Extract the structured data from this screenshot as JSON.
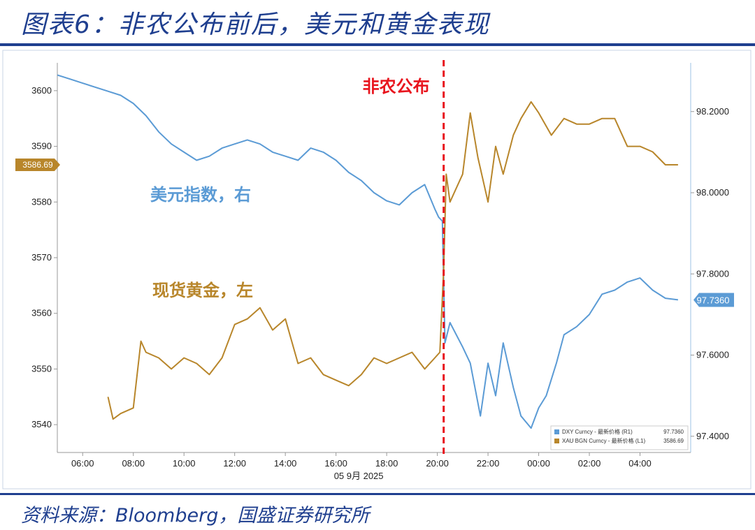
{
  "page": {
    "title": "图表6：非农公布前后，美元和黄金表现",
    "source": "资料来源：Bloomberg，国盛证券研究所"
  },
  "chart_data": {
    "type": "line",
    "x_ticks": [
      "06:00",
      "08:00",
      "10:00",
      "12:00",
      "14:00",
      "16:00",
      "18:00",
      "20:00",
      "22:00",
      "00:00",
      "02:00",
      "04:00"
    ],
    "date_label": "05 9月 2025",
    "event": {
      "label": "非农公布",
      "x": 20.25
    },
    "left_axis": {
      "ticks": [
        3540,
        3550,
        3560,
        3570,
        3580,
        3590,
        3600
      ],
      "range": [
        3535,
        3605
      ]
    },
    "right_axis": {
      "ticks": [
        97.4,
        97.6,
        97.8,
        98.0,
        98.2
      ],
      "tick_labels": [
        "97.4000",
        "97.6000",
        "97.7360",
        "97.8000",
        "98.0000",
        "98.2000"
      ],
      "range": [
        97.36,
        98.32
      ]
    },
    "series": [
      {
        "name": "DXY Curncy - 最新价格 (R1)",
        "label": "美元指数，右",
        "axis": "right",
        "color": "#5b9bd5",
        "last_value": "97.7360",
        "x": [
          5,
          5.5,
          6,
          7,
          7.5,
          8,
          8.5,
          9,
          9.5,
          10,
          10.5,
          11,
          11.5,
          12,
          12.5,
          13,
          13.5,
          14,
          14.5,
          15,
          15.5,
          16,
          16.5,
          17,
          17.5,
          18,
          18.5,
          19,
          19.5,
          19.9,
          20.05,
          20.2,
          20.3,
          20.5,
          21,
          21.3,
          21.7,
          22,
          22.3,
          22.6,
          23,
          23.3,
          23.7,
          24,
          24.3,
          24.7,
          25,
          25.5,
          26,
          26.5,
          27,
          27.5,
          28,
          28.5,
          29,
          29.5
        ],
        "y": [
          98.29,
          98.28,
          98.27,
          98.25,
          98.24,
          98.22,
          98.19,
          98.15,
          98.12,
          98.1,
          98.08,
          98.09,
          98.11,
          98.12,
          98.13,
          98.12,
          98.1,
          98.09,
          98.08,
          98.11,
          98.1,
          98.08,
          98.05,
          98.03,
          98.0,
          97.98,
          97.97,
          98.0,
          98.02,
          97.96,
          97.94,
          97.93,
          97.63,
          97.68,
          97.62,
          97.58,
          97.45,
          97.58,
          97.5,
          97.63,
          97.52,
          97.45,
          97.42,
          97.47,
          97.5,
          97.58,
          97.65,
          97.67,
          97.7,
          97.75,
          97.76,
          97.78,
          97.79,
          97.76,
          97.74,
          97.736
        ]
      },
      {
        "name": "XAU BGN Curncy - 最新价格 (L1)",
        "label": "现货黄金，左",
        "axis": "left",
        "color": "#b8862b",
        "last_value": "3586.69",
        "x": [
          7,
          7.2,
          7.5,
          8,
          8.3,
          8.5,
          9,
          9.5,
          10,
          10.5,
          11,
          11.5,
          12,
          12.5,
          13,
          13.5,
          14,
          14.5,
          15,
          15.5,
          16,
          16.5,
          17,
          17.5,
          18,
          18.5,
          19,
          19.5,
          19.9,
          20.1,
          20.25,
          20.35,
          20.5,
          21,
          21.3,
          21.6,
          22,
          22.3,
          22.6,
          23,
          23.3,
          23.7,
          24,
          24.5,
          25,
          25.5,
          26,
          26.5,
          27,
          27.5,
          28,
          28.5,
          29,
          29.5
        ],
        "y": [
          3545,
          3541,
          3542,
          3543,
          3555,
          3553,
          3552,
          3550,
          3552,
          3551,
          3549,
          3552,
          3558,
          3559,
          3561,
          3557,
          3559,
          3551,
          3552,
          3549,
          3548,
          3547,
          3549,
          3552,
          3551,
          3552,
          3553,
          3550,
          3552,
          3553,
          3568,
          3585,
          3580,
          3585,
          3596,
          3588,
          3580,
          3590,
          3585,
          3592,
          3595,
          3598,
          3596,
          3592,
          3595,
          3594,
          3594,
          3595,
          3595,
          3590,
          3590,
          3589,
          3586.69,
          3586.69
        ]
      }
    ]
  }
}
